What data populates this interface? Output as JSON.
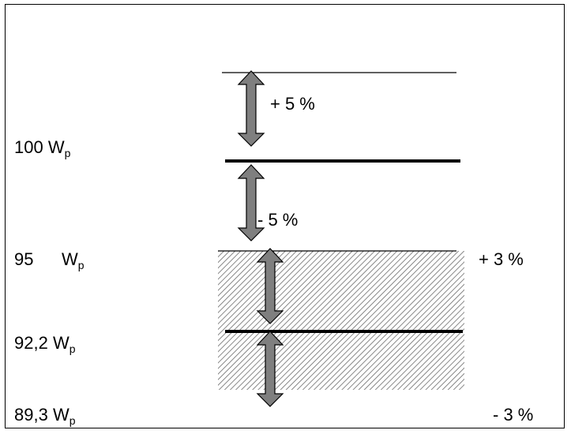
{
  "levels": {
    "l100": {
      "value": "100",
      "unit": "W",
      "sub": "p"
    },
    "l95": {
      "value": "95",
      "unit": "W",
      "sub": "p"
    },
    "l922": {
      "value": "92,2",
      "unit": "W",
      "sub": "p"
    },
    "l893": {
      "value": "89,3",
      "unit": "W",
      "sub": "p"
    }
  },
  "tolerances": {
    "plus5": "+ 5 %",
    "minus5": "- 5 %",
    "plus3": "+ 3 %",
    "minus3": "- 3 %"
  }
}
